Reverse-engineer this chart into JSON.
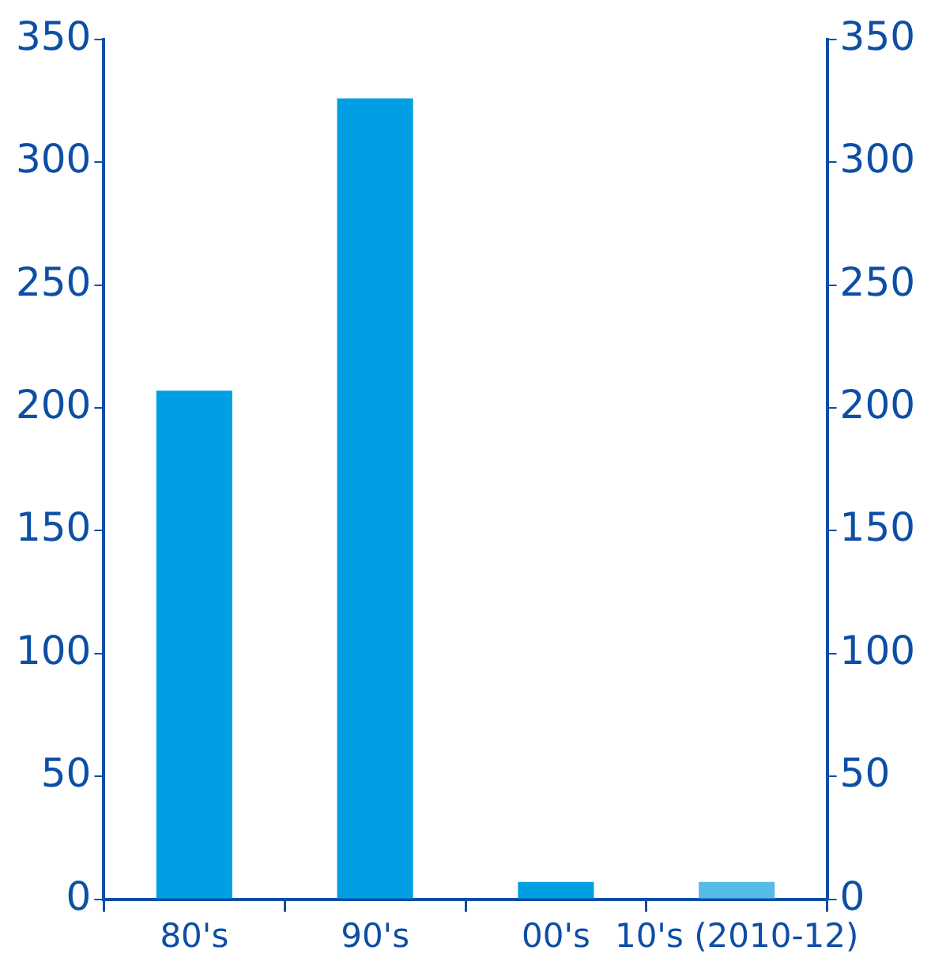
{
  "chart_data": {
    "type": "bar",
    "categories": [
      "80's",
      "90's",
      "00's",
      "10's (2010-12)"
    ],
    "values": [
      207,
      326,
      7,
      7
    ],
    "colors": [
      "#009fe3",
      "#009fe3",
      "#009fe3",
      "#55bbe8"
    ],
    "ylim": [
      0,
      350
    ],
    "yticks": [
      0,
      50,
      100,
      150,
      200,
      250,
      300,
      350
    ],
    "y2lim": [
      0,
      350
    ],
    "y2ticks": [
      0,
      50,
      100,
      150,
      200,
      250,
      300,
      350
    ],
    "grid": false,
    "legend": false
  }
}
